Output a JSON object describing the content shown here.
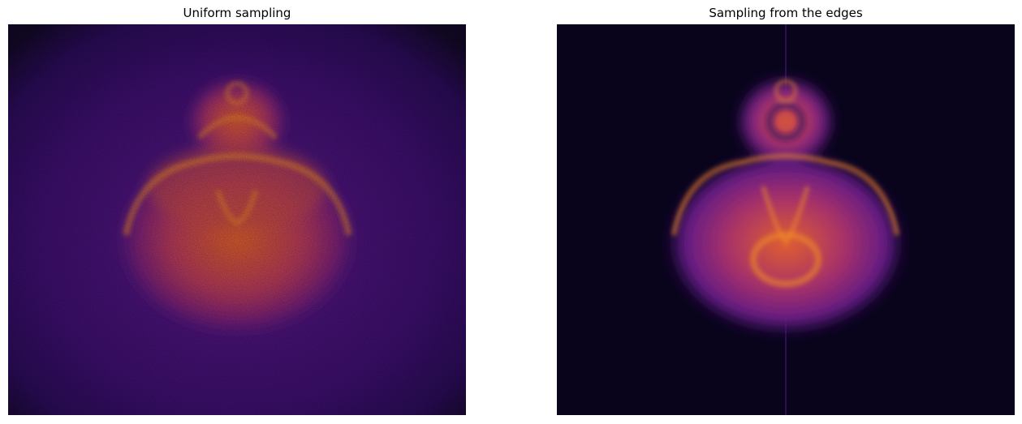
{
  "panels": [
    {
      "title": "Uniform sampling"
    },
    {
      "title": "Sampling from the edges"
    }
  ]
}
